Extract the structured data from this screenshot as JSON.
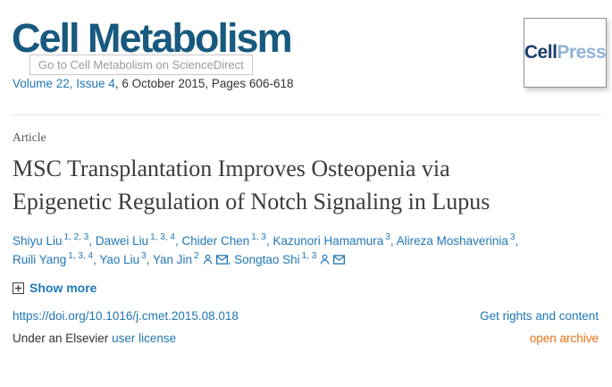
{
  "header": {
    "journal_logo": "Cell Metabolism",
    "tooltip": "Go to Cell Metabolism on ScienceDirect",
    "volume_link": "Volume 22, Issue 4",
    "volume_rest": ", 6 October 2015, Pages 606-618",
    "publisher_logo": {
      "cell": "Cell",
      "press": "Press"
    }
  },
  "article": {
    "type_label": "Article",
    "title": "MSC Transplantation Improves Osteopenia via Epigenetic Regulation of Notch Signaling in Lupus",
    "authors": [
      {
        "name": "Shiyu Liu",
        "sup": "1, 2, 3"
      },
      {
        "name": "Dawei Liu",
        "sup": "1, 3, 4"
      },
      {
        "name": "Chider Chen",
        "sup": "1, 3"
      },
      {
        "name": "Kazunori Hamamura",
        "sup": "3"
      },
      {
        "name": "Alireza Moshaverinia",
        "sup": "3"
      },
      {
        "name": "Ruili Yang",
        "sup": "1, 3, 4"
      },
      {
        "name": "Yao Liu",
        "sup": "3"
      },
      {
        "name": "Yan Jin",
        "sup": "2",
        "person": true,
        "email": true
      },
      {
        "name": "Songtao Shi",
        "sup": "1, 3",
        "person": true,
        "email": true
      }
    ],
    "author_separator": ", ",
    "show_more_label": "Show more"
  },
  "footer": {
    "doi": "https://doi.org/10.1016/j.cmet.2015.08.018",
    "rights_link": "Get rights and content",
    "license_prefix": "Under an Elsevier ",
    "license_link": "user license",
    "open_archive_link": "open archive"
  },
  "colors": {
    "logo_blue": "#18597f",
    "link_blue": "#2278b5",
    "open_archive_orange": "#ed7014",
    "cellpress_dark_blue": "#1c3e6e",
    "cellpress_light_blue": "#8fb3d9",
    "tooltip_gray": "#9a9a9a",
    "body_text": "#333333"
  }
}
